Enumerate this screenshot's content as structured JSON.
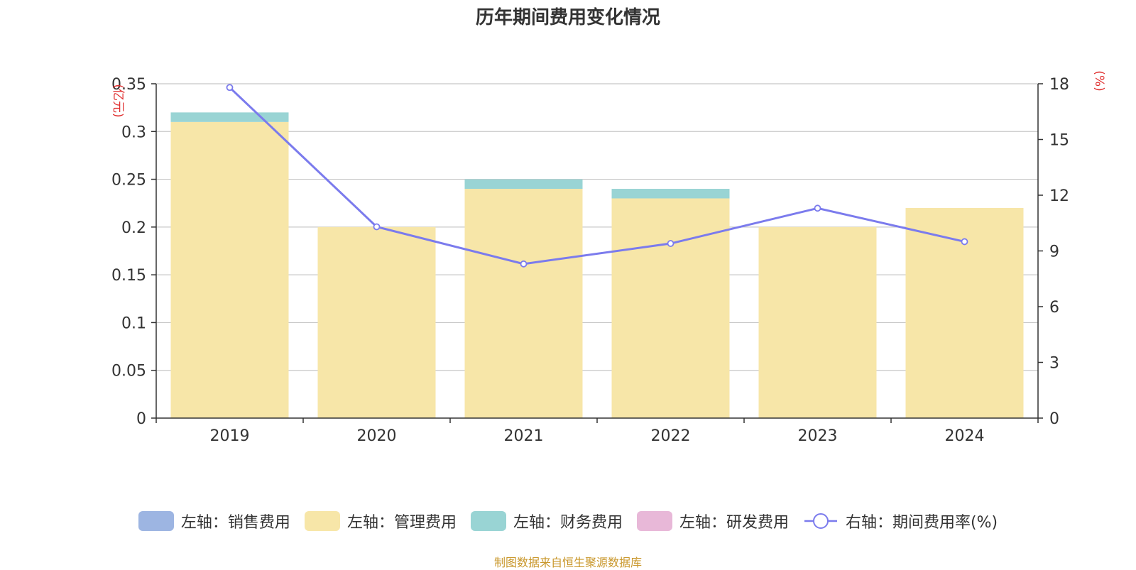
{
  "chart_data": {
    "type": "bar",
    "stacked": true,
    "title": "历年期间费用变化情况",
    "categories": [
      "2019",
      "2020",
      "2021",
      "2022",
      "2023",
      "2024"
    ],
    "left_axis": {
      "unit_label": "(亿元)",
      "ylim": [
        0,
        0.35
      ],
      "ticks": [
        0,
        0.05,
        0.1,
        0.15,
        0.2,
        0.25,
        0.3,
        0.35
      ],
      "tick_labels": [
        "0",
        "0.05",
        "0.1",
        "0.15",
        "0.2",
        "0.25",
        "0.3",
        "0.35"
      ]
    },
    "right_axis": {
      "unit_label": "(%)",
      "ylim": [
        0,
        18
      ],
      "ticks": [
        0,
        3,
        6,
        9,
        12,
        15,
        18
      ],
      "tick_labels": [
        "0",
        "3",
        "6",
        "9",
        "12",
        "15",
        "18"
      ]
    },
    "series": [
      {
        "name": "左轴：销售费用",
        "axis": "left",
        "type": "bar",
        "color": "#9db5e2",
        "values": [
          0,
          0,
          0,
          0,
          0,
          0
        ]
      },
      {
        "name": "左轴：管理费用",
        "axis": "left",
        "type": "bar",
        "color": "#f7e6a8",
        "values": [
          0.31,
          0.2,
          0.24,
          0.23,
          0.2,
          0.22
        ]
      },
      {
        "name": "左轴：财务费用",
        "axis": "left",
        "type": "bar",
        "color": "#99d4d4",
        "values": [
          0.01,
          0,
          0.01,
          0.01,
          0,
          0
        ]
      },
      {
        "name": "左轴：研发费用",
        "axis": "left",
        "type": "bar",
        "color": "#e8b8d8",
        "values": [
          0,
          0,
          0,
          0,
          0,
          0
        ]
      },
      {
        "name": "右轴：期间费用率(%)",
        "axis": "right",
        "type": "line",
        "color": "#7b7bed",
        "values": [
          17.8,
          10.3,
          8.3,
          9.4,
          11.3,
          9.5
        ]
      }
    ],
    "grid": true,
    "legend_position": "bottom"
  },
  "source_note": "制图数据来自恒生聚源数据库"
}
